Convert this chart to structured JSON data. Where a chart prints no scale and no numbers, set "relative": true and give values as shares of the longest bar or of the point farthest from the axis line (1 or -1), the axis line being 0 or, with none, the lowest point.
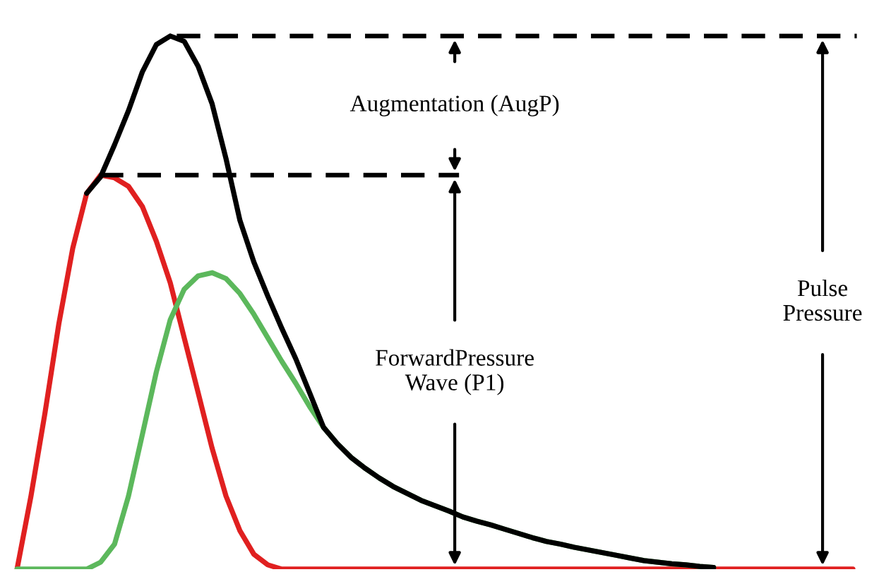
{
  "chart_data": {
    "type": "line",
    "relative": true,
    "marker": "none",
    "line_style": "solid",
    "categories": [
      null,
      null,
      null,
      null,
      null,
      null,
      null,
      null,
      null,
      null,
      null,
      null,
      null,
      null,
      null,
      null,
      null,
      null,
      null,
      null,
      null,
      null,
      null,
      null,
      null,
      null,
      null,
      null,
      null,
      null,
      null,
      null,
      null,
      null,
      null,
      null,
      null,
      null,
      null,
      null,
      null,
      null,
      null,
      null,
      null,
      null,
      null,
      null,
      null,
      null,
      null,
      null,
      null,
      null,
      null,
      null,
      null,
      null,
      null,
      null,
      null
    ],
    "series": [
      {
        "color": "#e02020",
        "values": [
          0,
          0.137,
          0.292,
          0.46,
          0.602,
          0.705,
          0.739,
          0.734,
          0.718,
          0.68,
          0.615,
          0.537,
          0.434,
          0.331,
          0.227,
          0.137,
          0.072,
          0.028,
          0.008,
          0,
          0,
          0,
          0,
          0,
          0,
          0,
          0,
          0,
          0,
          0,
          0,
          0,
          0,
          0,
          0,
          0,
          0,
          0,
          0,
          0,
          0,
          0,
          0,
          0,
          0,
          0,
          0,
          0,
          0,
          0,
          0,
          0,
          0,
          0,
          0,
          0,
          0,
          0,
          0,
          0,
          0
        ]
      },
      {
        "color": "#5cb85c",
        "values": [
          0,
          0,
          0,
          0,
          0,
          0,
          0.013,
          0.047,
          0.137,
          0.253,
          0.37,
          0.468,
          0.525,
          0.55,
          0.556,
          0.545,
          0.517,
          0.478,
          0.434,
          0.39,
          0.349,
          0.305,
          0.266,
          0.235,
          0.209,
          0.189,
          0.171,
          0.155,
          0.142,
          0.129,
          0.119,
          0.109,
          0.098,
          0.09,
          0.083,
          0.075,
          0.067,
          0.059,
          0.052,
          0.047,
          0.041,
          0.036,
          0.031,
          0.026,
          0.021,
          0.016,
          0.013,
          0.01,
          0.008,
          0.005,
          0.003,
          null,
          null,
          null,
          null,
          null,
          null,
          null,
          null,
          null,
          null
        ]
      },
      {
        "color": "#000000",
        "values": [
          null,
          null,
          null,
          null,
          null,
          0.705,
          0.736,
          0.796,
          0.86,
          0.933,
          0.984,
          1,
          0.99,
          0.943,
          0.873,
          0.77,
          0.654,
          0.576,
          0.512,
          0.452,
          0.395,
          0.331,
          0.266,
          0.235,
          0.209,
          0.189,
          0.171,
          0.155,
          0.142,
          0.129,
          0.119,
          0.109,
          0.098,
          0.09,
          0.083,
          0.075,
          0.067,
          0.059,
          0.052,
          0.047,
          0.041,
          0.036,
          0.031,
          0.026,
          0.021,
          0.016,
          0.013,
          0.01,
          0.008,
          0.005,
          0.003,
          null,
          null,
          null,
          null,
          null,
          null,
          null,
          null,
          null,
          null
        ]
      }
    ],
    "ref_lines": [
      {
        "axis": "y",
        "value": 1,
        "color": "#000000",
        "line_style": "dashed"
      },
      {
        "axis": "y",
        "value": 0.739,
        "color": "#000000",
        "line_style": "dashed"
      }
    ],
    "annotations": [
      "Augmentation (AugP)",
      "ForwardPressure\nWave (P1)",
      "Pulse\nPressure"
    ]
  }
}
